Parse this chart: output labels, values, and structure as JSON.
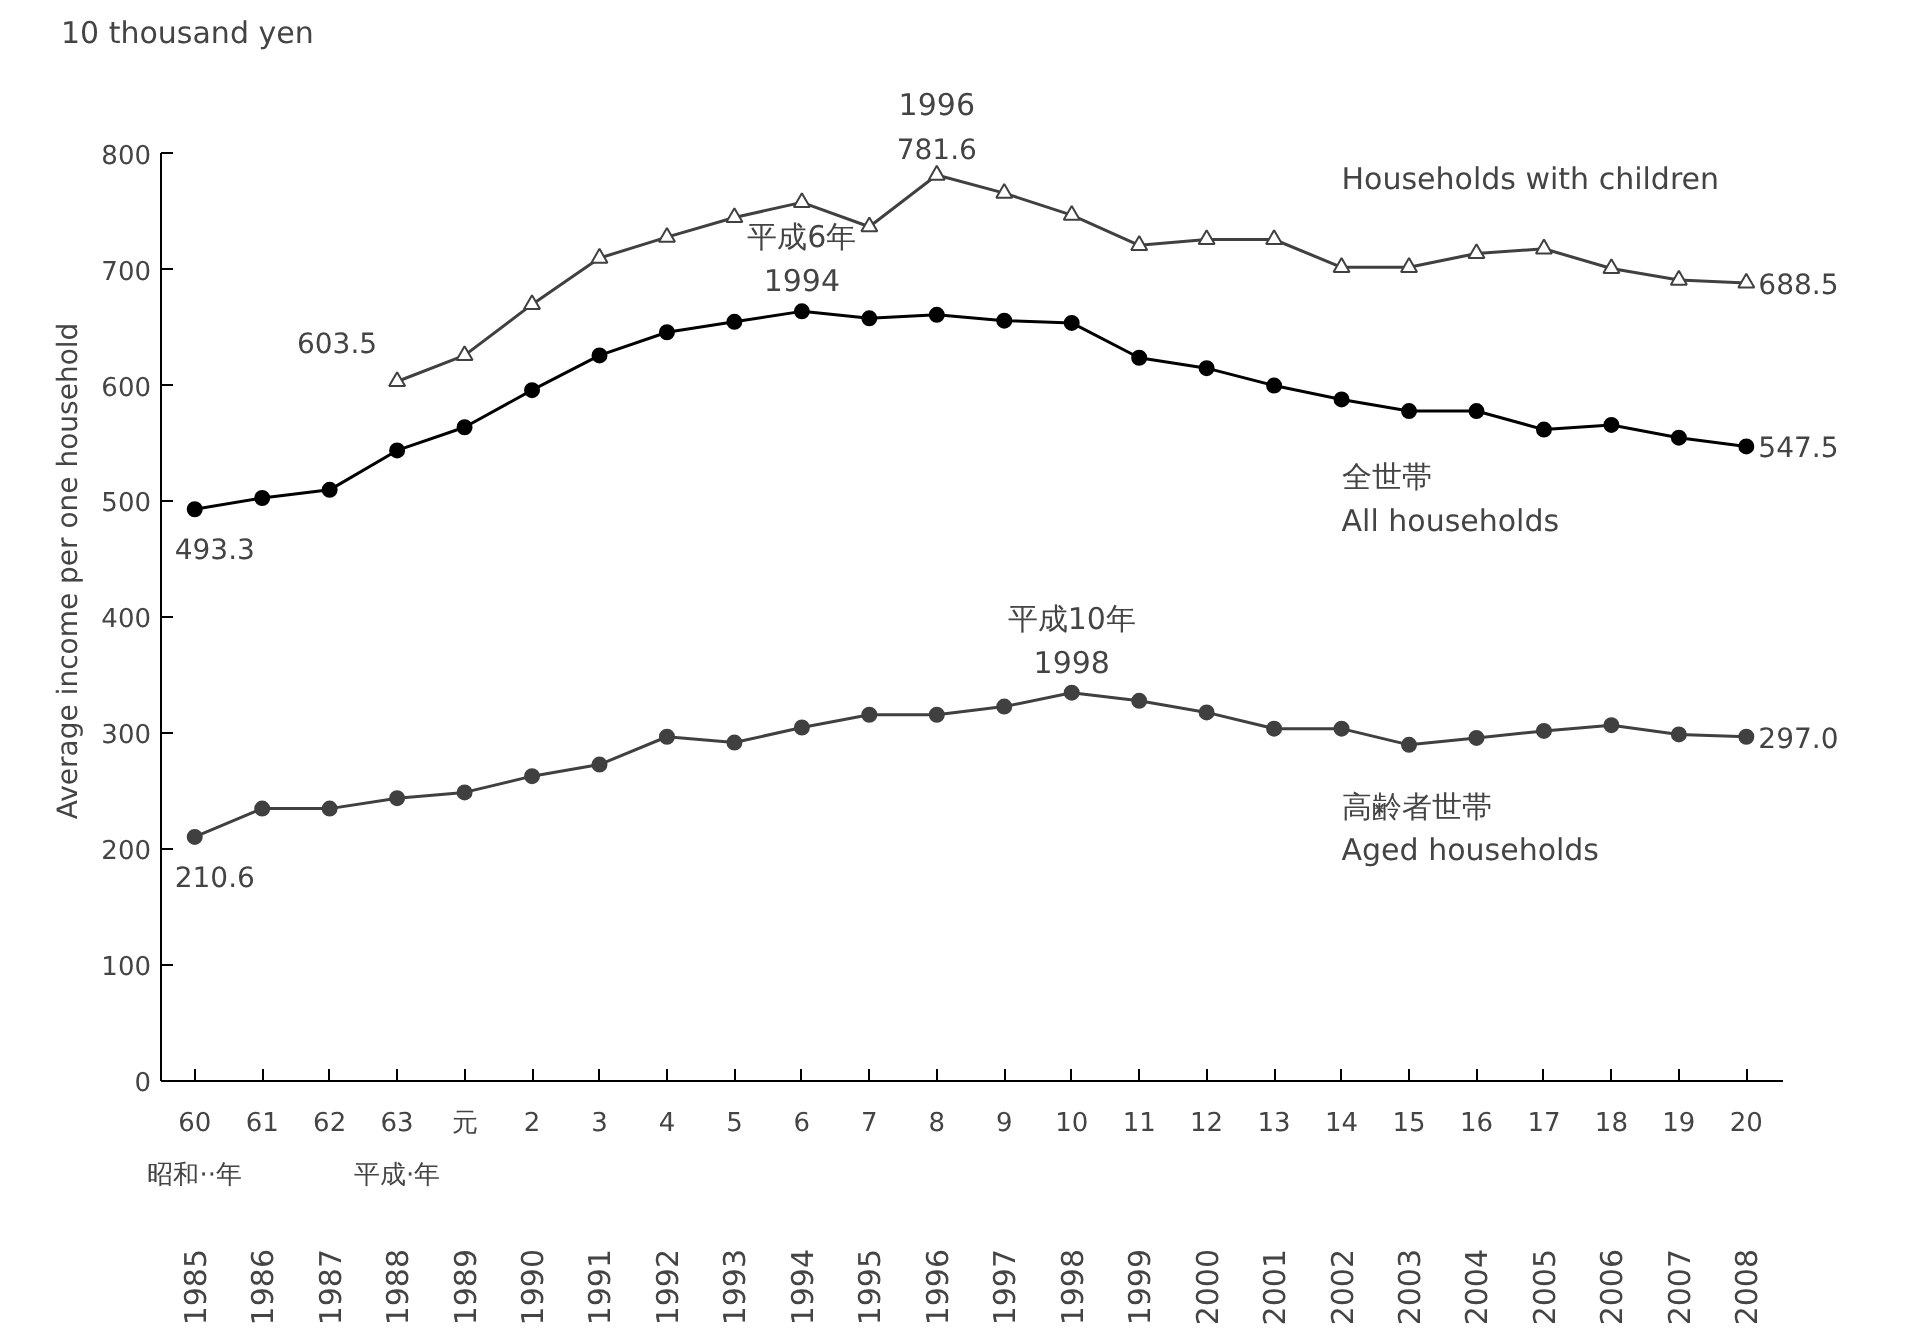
{
  "chart_data": {
    "type": "line",
    "ylabel": "Average income per one household",
    "categories": [
      "60",
      "61",
      "62",
      "63",
      "元",
      "2",
      "3",
      "4",
      "5",
      "6",
      "7",
      "8",
      "9",
      "10",
      "11",
      "12",
      "13",
      "14",
      "15",
      "16",
      "17",
      "18",
      "19",
      "20"
    ],
    "ylim": [
      0,
      800
    ],
    "yticks": [
      0,
      100,
      200,
      300,
      400,
      500,
      600,
      700,
      800
    ],
    "grid": false,
    "legend": false,
    "line_style": "solid",
    "series": [
      {
        "name": "Households with children",
        "color": "#404040",
        "marker": "triangle",
        "values": [
          null,
          null,
          null,
          603.5,
          626,
          670,
          710,
          728,
          745,
          758,
          737,
          781.6,
          766,
          747,
          721,
          726,
          726,
          702,
          702,
          714,
          718,
          701,
          691,
          688.5
        ],
        "value_labels": [
          null,
          null,
          null,
          "603.5",
          null,
          null,
          null,
          null,
          null,
          null,
          null,
          "781.6",
          null,
          null,
          null,
          null,
          null,
          null,
          null,
          null,
          null,
          null,
          null,
          "688.5"
        ]
      },
      {
        "name": "全世帯\nAll households",
        "color": "#000000",
        "marker": "circle",
        "values": [
          493.3,
          503,
          510,
          544,
          564,
          596,
          626,
          646,
          655,
          664,
          658,
          661,
          656,
          654,
          624,
          615,
          600,
          588,
          578,
          578,
          562,
          566,
          555,
          547.5
        ],
        "value_labels": [
          "493.3",
          null,
          null,
          null,
          null,
          null,
          null,
          null,
          null,
          null,
          null,
          null,
          null,
          null,
          null,
          null,
          null,
          null,
          null,
          null,
          null,
          null,
          null,
          "547.5"
        ]
      },
      {
        "name": "高齢者世帯\nAged households",
        "color": "#404040",
        "marker": "circle",
        "values": [
          210.6,
          235,
          235,
          244,
          249,
          263,
          273,
          297,
          292,
          305,
          316,
          316,
          323,
          335,
          328,
          318,
          304,
          304,
          290,
          296,
          302,
          307,
          299,
          297.0
        ],
        "value_labels": [
          "210.6",
          null,
          null,
          null,
          null,
          null,
          null,
          null,
          null,
          null,
          null,
          null,
          null,
          null,
          null,
          null,
          null,
          null,
          null,
          null,
          null,
          null,
          null,
          "297.0"
        ]
      }
    ],
    "annotations": [
      "10 thousand yen",
      {
        "text": "1996",
        "x": "8",
        "y": 781.6
      },
      {
        "text": "平成6年",
        "x": "6",
        "y": 664
      },
      {
        "text": "1994",
        "x": "6",
        "y": 664
      },
      {
        "text": "平成10年",
        "x": "10",
        "y": 335
      },
      {
        "text": "1998",
        "x": "10",
        "y": 335
      },
      "昭和··年",
      "平成·年",
      "1985",
      "1986",
      "1987",
      "1988",
      "1989",
      "1990",
      "1991",
      "1992",
      "1993",
      "1994",
      "1995",
      "1996",
      "1997",
      "1998",
      "1999",
      "2000",
      "2001",
      "2002",
      "2003",
      "2004",
      "2005",
      "2006",
      "2007",
      "2008"
    ]
  }
}
